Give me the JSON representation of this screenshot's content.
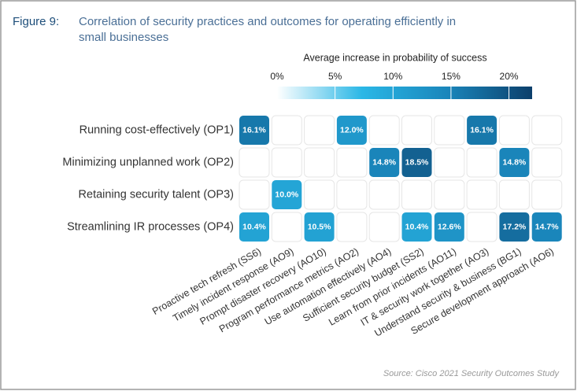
{
  "chart_data": {
    "type": "heatmap",
    "figure_label": "Figure 9:",
    "title": "Correlation of security practices and outcomes for operating efficiently in small businesses",
    "colorbar_title": "Average increase in probability of success",
    "clim": [
      0,
      22
    ],
    "cticks": [
      {
        "value": 0,
        "label": "0%"
      },
      {
        "value": 5,
        "label": "5%"
      },
      {
        "value": 10,
        "label": "10%"
      },
      {
        "value": 15,
        "label": "15%"
      },
      {
        "value": 20,
        "label": "20%"
      }
    ],
    "colorscale": [
      "#ffffff",
      "#2ab7e6",
      "#1a86bb",
      "#0c3f6b"
    ],
    "rows": [
      "Running cost-effectively (OP1)",
      "Minimizing unplanned work (OP2)",
      "Retaining security talent (OP3)",
      "Streamlining IR processes (OP4)"
    ],
    "columns": [
      "Proactive tech refresh (SS6)",
      "Timely incident response (AO9)",
      "Prompt disaster recovery (AO10)",
      "Program performance metrics (AO2)",
      "Use automation effectively (AO4)",
      "Sufficient security budget (SS2)",
      "Learn from prior incidents (AO11)",
      "IT & security work together (AO3)",
      "Understand security & business (BG1)",
      "Secure development approach (AO6)"
    ],
    "values": [
      [
        16.1,
        null,
        null,
        12.0,
        null,
        null,
        null,
        16.1,
        null,
        null
      ],
      [
        null,
        null,
        null,
        null,
        14.8,
        18.5,
        null,
        null,
        14.8,
        null
      ],
      [
        null,
        10.0,
        null,
        null,
        null,
        null,
        null,
        null,
        null,
        null
      ],
      [
        10.4,
        null,
        10.5,
        null,
        null,
        10.4,
        12.6,
        null,
        17.2,
        14.7
      ]
    ],
    "value_labels": [
      [
        "16.1%",
        null,
        null,
        "12.0%",
        null,
        null,
        null,
        "16.1%",
        null,
        null
      ],
      [
        null,
        null,
        null,
        null,
        "14.8%",
        "18.5%",
        null,
        null,
        "14.8%",
        null
      ],
      [
        null,
        "10.0%",
        null,
        null,
        null,
        null,
        null,
        null,
        null,
        null
      ],
      [
        "10.4%",
        null,
        "10.5%",
        null,
        null,
        "10.4%",
        "12.6%",
        null,
        "17.2%",
        "14.7%"
      ]
    ],
    "source": "Source: Cisco 2021 Security Outcomes Study"
  }
}
